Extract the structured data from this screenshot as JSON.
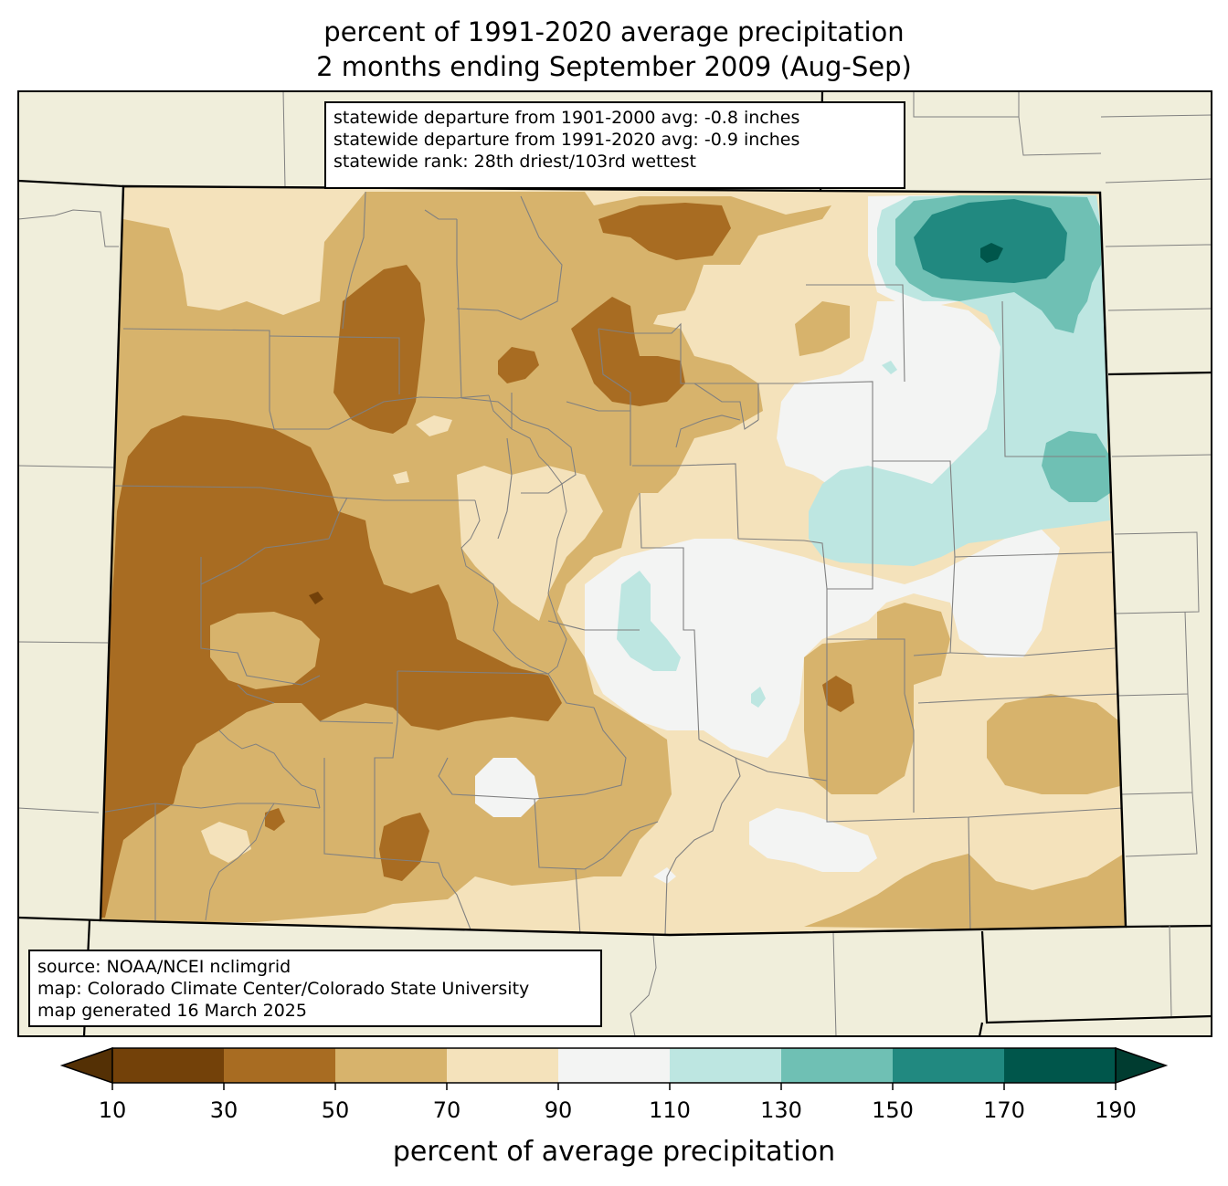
{
  "title": {
    "line1": "percent of 1991-2020 average precipitation",
    "line2": "2 months ending September 2009 (Aug-Sep)"
  },
  "stats": {
    "line1": "statewide departure from 1901-2000 avg: -0.8 inches",
    "line2": "statewide departure from 1991-2020 avg: -0.9 inches",
    "line3": "statewide rank: 28th driest/103rd wettest"
  },
  "source": {
    "line1": "source: NOAA/NCEI nclimgrid",
    "line2": "map: Colorado Climate Center/Colorado State University",
    "line3": "map generated 16 March 2025"
  },
  "colorbar": {
    "label": "percent of average precipitation",
    "ticks": [
      "10",
      "30",
      "50",
      "70",
      "90",
      "110",
      "130",
      "150",
      "170",
      "190"
    ],
    "bins": [
      {
        "range": "10-30",
        "color": "#734109"
      },
      {
        "range": "30-50",
        "color": "#a86c22"
      },
      {
        "range": "50-70",
        "color": "#d7b36c"
      },
      {
        "range": "70-90",
        "color": "#f4e2bb"
      },
      {
        "range": "90-110",
        "color": "#f3f4f3"
      },
      {
        "range": "110-130",
        "color": "#bde6e1"
      },
      {
        "range": "130-150",
        "color": "#6fc0b4"
      },
      {
        "range": "150-170",
        "color": "#218980"
      },
      {
        "range": "170-190",
        "color": "#00564b"
      }
    ],
    "under_color": "#543005",
    "over_color": "#003c30"
  },
  "map": {
    "background_color": "#f0eedb",
    "county_line_color": "#808080"
  }
}
